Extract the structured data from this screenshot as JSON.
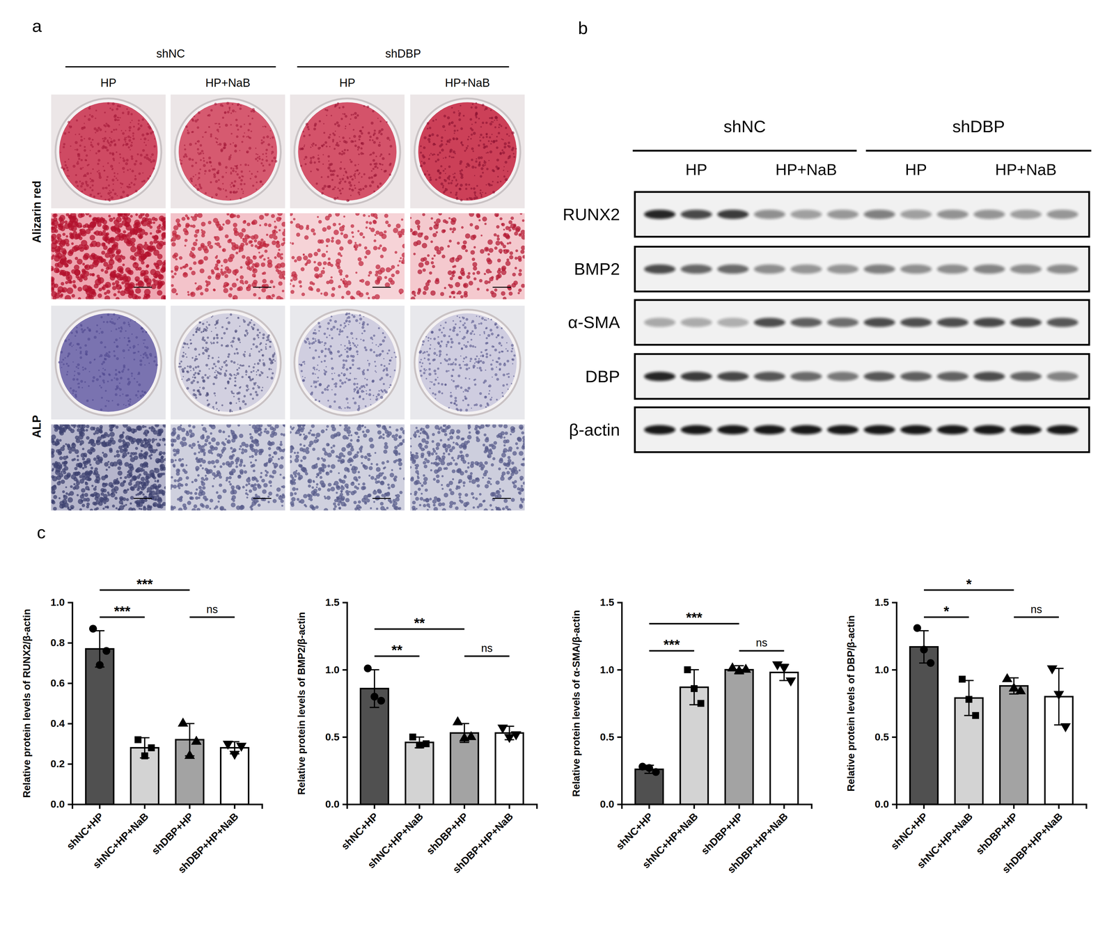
{
  "figure": {
    "a": {
      "letter": "a",
      "groups": [
        "shNC",
        "shDBP"
      ],
      "conditions": [
        "HP",
        "HP+NaB",
        "HP",
        "HP+NaB"
      ],
      "rows": [
        "Alizarin red",
        "ALP"
      ]
    },
    "b": {
      "letter": "b",
      "groups": [
        "shNC",
        "shDBP"
      ],
      "conditions": [
        "HP",
        "HP+NaB",
        "HP",
        "HP+NaB"
      ],
      "proteins": [
        "RUNX2",
        "BMP2",
        "α-SMA",
        "DBP",
        "β-actin"
      ]
    },
    "c": {
      "letter": "c"
    }
  },
  "chart_data": [
    {
      "type": "bar",
      "ylabel": "Relative protein levels of  RUNX2/β-actin",
      "categories": [
        "shNC+HP",
        "shNC+HP+NaB",
        "shDBP+HP",
        "shDBP+HP+NaB"
      ],
      "values": [
        0.77,
        0.28,
        0.32,
        0.28
      ],
      "errors": [
        0.09,
        0.05,
        0.08,
        0.03
      ],
      "points": [
        [
          0.87,
          0.69,
          0.76
        ],
        [
          0.32,
          0.24,
          0.28
        ],
        [
          0.4,
          0.24,
          0.31
        ],
        [
          0.3,
          0.25,
          0.29
        ]
      ],
      "colors": [
        "#505050",
        "#d3d3d3",
        "#a3a3a3",
        "#ffffff"
      ],
      "ylim": [
        0,
        1.0
      ],
      "yticks": [
        {
          "value": 0,
          "label": "0.0"
        },
        0.2,
        0.4,
        0.6,
        0.8,
        {
          "value": 1,
          "label": "1.0"
        }
      ],
      "annotations": [
        {
          "from": 0,
          "to": 1,
          "text": "***"
        },
        {
          "from": 0,
          "to": 2,
          "text": "***"
        },
        {
          "from": 2,
          "to": 3,
          "text": "ns"
        }
      ]
    },
    {
      "type": "bar",
      "ylabel": "Relative protein levels of  BMP2/β-actin",
      "categories": [
        "shNC+HP",
        "shNC+HP+NaB",
        "shDBP+HP",
        "shDBP+HP+NaB"
      ],
      "values": [
        0.86,
        0.46,
        0.53,
        0.53
      ],
      "errors": [
        0.14,
        0.04,
        0.07,
        0.05
      ],
      "points": [
        [
          1.01,
          0.8,
          0.77
        ],
        [
          0.5,
          0.44,
          0.45
        ],
        [
          0.61,
          0.49,
          0.5
        ],
        [
          0.57,
          0.5,
          0.52
        ]
      ],
      "colors": [
        "#505050",
        "#d3d3d3",
        "#a3a3a3",
        "#ffffff"
      ],
      "ylim": [
        0,
        1.5
      ],
      "yticks": [
        {
          "value": 0,
          "label": "0.0"
        },
        0.5,
        {
          "value": 1,
          "label": "1.0"
        },
        1.5
      ],
      "annotations": [
        {
          "from": 0,
          "to": 1,
          "text": "**"
        },
        {
          "from": 0,
          "to": 2,
          "text": "**"
        },
        {
          "from": 2,
          "to": 3,
          "text": "ns"
        }
      ]
    },
    {
      "type": "bar",
      "ylabel": "Relative protein levels of  α-SMA/β-actin",
      "categories": [
        "shNC+HP",
        "shNC+HP+NaB",
        "shDBP+HP",
        "shDBP+HP+NaB"
      ],
      "values": [
        0.26,
        0.87,
        1.0,
        0.98
      ],
      "errors": [
        0.03,
        0.13,
        0.03,
        0.06
      ],
      "points": [
        [
          0.28,
          0.27,
          0.24
        ],
        [
          1.0,
          0.86,
          0.75
        ],
        [
          1.01,
          0.99,
          1.0
        ],
        [
          1.04,
          1.02,
          0.92
        ]
      ],
      "colors": [
        "#505050",
        "#d3d3d3",
        "#a3a3a3",
        "#ffffff"
      ],
      "ylim": [
        0,
        1.5
      ],
      "yticks": [
        {
          "value": 0,
          "label": "0.0"
        },
        0.5,
        {
          "value": 1,
          "label": "1.0"
        },
        1.5
      ],
      "annotations": [
        {
          "from": 0,
          "to": 1,
          "text": "***"
        },
        {
          "from": 0,
          "to": 2,
          "text": "***"
        },
        {
          "from": 2,
          "to": 3,
          "text": "ns"
        }
      ]
    },
    {
      "type": "bar",
      "ylabel": "Relative protein levels of DBP/β-actin",
      "categories": [
        "shNC+HP",
        "shNC+HP+NaB",
        "shDBP+HP",
        "shDBP+HP+NaB"
      ],
      "values": [
        1.17,
        0.79,
        0.88,
        0.8
      ],
      "errors": [
        0.12,
        0.13,
        0.06,
        0.21
      ],
      "points": [
        [
          1.31,
          1.15,
          1.05
        ],
        [
          0.93,
          0.78,
          0.66
        ],
        [
          0.93,
          0.86,
          0.84
        ],
        [
          1.01,
          0.82,
          0.58
        ]
      ],
      "colors": [
        "#505050",
        "#d3d3d3",
        "#a3a3a3",
        "#ffffff"
      ],
      "ylim": [
        0,
        1.5
      ],
      "yticks": [
        {
          "value": 0,
          "label": "0.0"
        },
        0.5,
        {
          "value": 1,
          "label": "1.0"
        },
        1.5
      ],
      "annotations": [
        {
          "from": 0,
          "to": 1,
          "text": "*"
        },
        {
          "from": 0,
          "to": 2,
          "text": "*"
        },
        {
          "from": 2,
          "to": 3,
          "text": "ns"
        }
      ]
    }
  ]
}
